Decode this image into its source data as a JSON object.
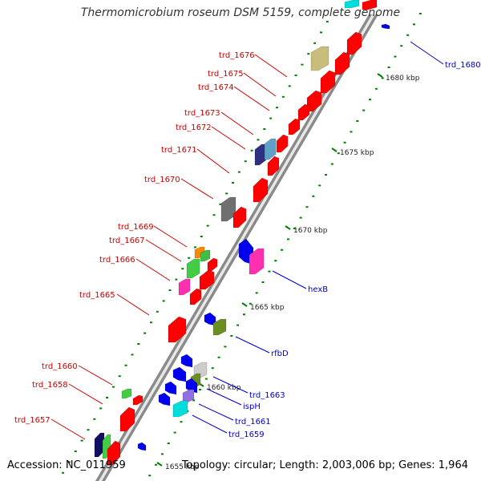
{
  "title": "Thermomicrobium roseum DSM 5159, complete genome",
  "footer": {
    "accession": "Accession: NC_011959",
    "summary": "Topology: circular; Length: 2,003,006 bp; Genes: 1,964"
  },
  "colors": {
    "forward": "#ff0000",
    "reverse": "#0000ff",
    "tick": "#008000",
    "left_label": "#cc0000",
    "right_label": "#0000cc",
    "backbone": "#aaaaaa"
  },
  "scale_ticks": [
    {
      "label": "1655 kbp"
    },
    {
      "label": "1660 kbp"
    },
    {
      "label": "1665 kbp"
    },
    {
      "label": "1670 kbp"
    },
    {
      "label": "1675 kbp"
    },
    {
      "label": "1680 kbp"
    }
  ],
  "left_labels": [
    {
      "text": "trd_1676"
    },
    {
      "text": "trd_1675"
    },
    {
      "text": "trd_1674"
    },
    {
      "text": "trd_1673"
    },
    {
      "text": "trd_1672"
    },
    {
      "text": "trd_1671"
    },
    {
      "text": "trd_1670"
    },
    {
      "text": "trd_1669"
    },
    {
      "text": "trd_1667"
    },
    {
      "text": "trd_1666"
    },
    {
      "text": "trd_1665"
    },
    {
      "text": "trd_1660"
    },
    {
      "text": "trd_1658"
    },
    {
      "text": "trd_1657"
    }
  ],
  "right_labels": [
    {
      "text": "trd_1680"
    },
    {
      "text": "hexB"
    },
    {
      "text": "rfbD"
    },
    {
      "text": "trd_1663"
    },
    {
      "text": "ispH"
    },
    {
      "text": "trd_1661"
    },
    {
      "text": "trd_1659"
    }
  ]
}
